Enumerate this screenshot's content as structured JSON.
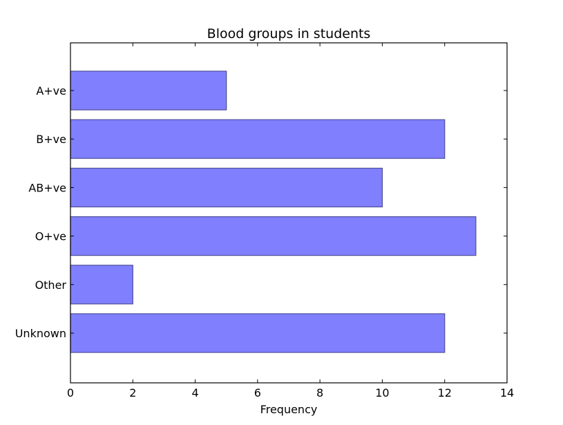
{
  "chart_data": {
    "type": "bar",
    "orientation": "horizontal",
    "title": "Blood groups in students",
    "xlabel": "Frequency",
    "ylabel": "",
    "categories": [
      "A+ve",
      "B+ve",
      "AB+ve",
      "O+ve",
      "Other",
      "Unknown"
    ],
    "values": [
      5,
      12,
      10,
      13,
      2,
      12
    ],
    "xlim": [
      0,
      14
    ],
    "xticks": [
      0,
      2,
      4,
      6,
      8,
      10,
      12,
      14
    ],
    "grid": false,
    "legend": "none",
    "bar_color": "#8080ff",
    "bar_edge_color": "#4d4d99"
  }
}
